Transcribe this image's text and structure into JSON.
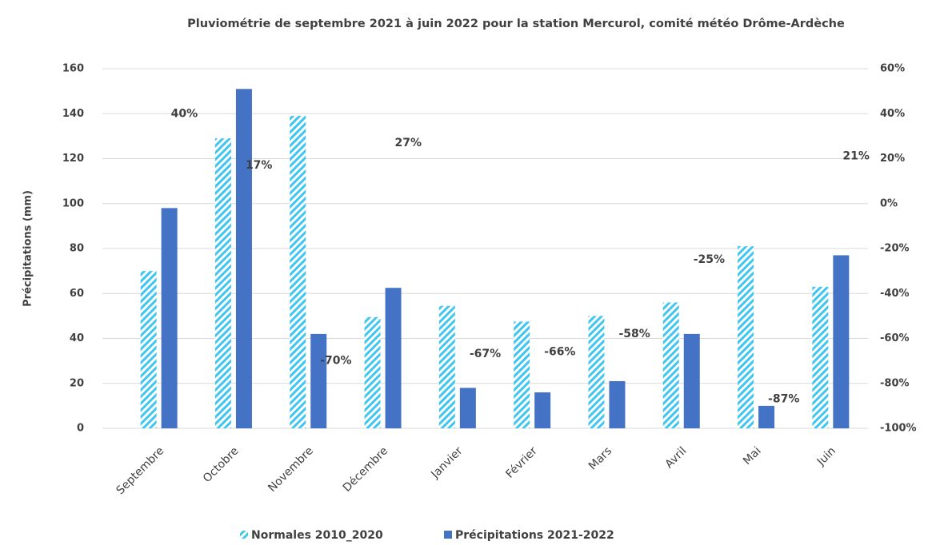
{
  "chart_data": {
    "type": "bar",
    "title": "Pluviométrie de septembre 2021 à juin 2022 pour la station Mercurol, comité météo Drôme-Ardèche",
    "y_label": "Précipitations (mm)",
    "categories": [
      "Septembre",
      "Octobre",
      "Novembre",
      "Décembre",
      "Janvier",
      "Février",
      "Mars",
      "Avril",
      "Mai",
      "Juin"
    ],
    "series": [
      {
        "name": "Normales 2010_2020",
        "color": "#3ec6f0",
        "pattern": "hatch",
        "values": [
          70,
          129,
          139,
          49.5,
          54.5,
          47.5,
          50,
          56,
          81,
          63
        ]
      },
      {
        "name": "Précipitations 2021-2022",
        "color": "#4472c4",
        "values": [
          98,
          151,
          42,
          62.5,
          18,
          16,
          21,
          42,
          10,
          77
        ]
      },
      {
        "axis": "y2",
        "values": [
          40,
          17,
          -70,
          27,
          -67,
          -66,
          -58,
          -25,
          -87,
          21
        ],
        "value_labels": [
          "40%",
          "17%",
          "-70%",
          "27%",
          "-67%",
          "-66%",
          "-58%",
          "-25%",
          "-87%",
          "21%"
        ]
      }
    ],
    "ylim": [
      0,
      160
    ],
    "yticks": [
      0,
      20,
      40,
      60,
      80,
      100,
      120,
      140,
      160
    ],
    "y2lim": [
      -100,
      60
    ],
    "y2ticks": [
      {
        "value": -100,
        "label": "-100%"
      },
      {
        "value": -80,
        "label": "-80%"
      },
      {
        "value": -60,
        "label": "-60%"
      },
      {
        "value": -40,
        "label": "-40%"
      },
      {
        "value": -20,
        "label": "-20%"
      },
      {
        "value": 0,
        "label": "0%"
      },
      {
        "value": 20,
        "label": "20%"
      },
      {
        "value": 40,
        "label": "40%"
      },
      {
        "value": 60,
        "label": "60%"
      }
    ],
    "grid": true,
    "legend": "bottom"
  }
}
